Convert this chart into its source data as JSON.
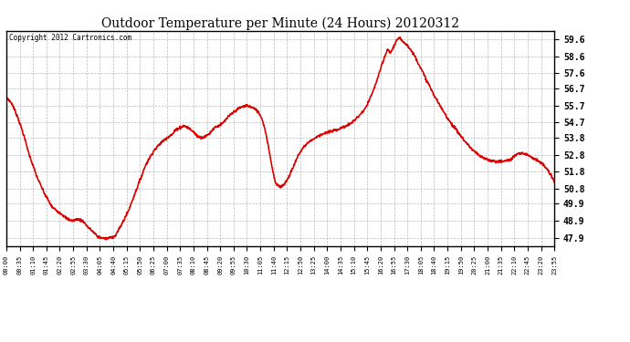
{
  "title": "Outdoor Temperature per Minute (24 Hours) 20120312",
  "copyright": "Copyright 2012 Cartronics.com",
  "line_color": "#dd0000",
  "background_color": "#ffffff",
  "grid_color": "#aaaaaa",
  "yticks": [
    47.9,
    48.9,
    49.9,
    50.8,
    51.8,
    52.8,
    53.8,
    54.7,
    55.7,
    56.7,
    57.6,
    58.6,
    59.6
  ],
  "ylim": [
    47.4,
    60.1
  ],
  "xtick_labels": [
    "00:00",
    "00:35",
    "01:10",
    "01:45",
    "02:20",
    "02:55",
    "03:30",
    "04:05",
    "04:40",
    "05:15",
    "05:50",
    "06:25",
    "07:00",
    "07:35",
    "08:10",
    "08:45",
    "09:20",
    "09:55",
    "10:30",
    "11:05",
    "11:40",
    "12:15",
    "12:50",
    "13:25",
    "14:00",
    "14:35",
    "15:10",
    "15:45",
    "16:20",
    "16:55",
    "17:30",
    "18:05",
    "18:40",
    "19:15",
    "19:50",
    "20:25",
    "21:00",
    "21:35",
    "22:10",
    "22:45",
    "23:20",
    "23:55"
  ],
  "control_points": [
    [
      0,
      56.2
    ],
    [
      15,
      55.8
    ],
    [
      30,
      55.0
    ],
    [
      45,
      54.0
    ],
    [
      60,
      52.8
    ],
    [
      80,
      51.5
    ],
    [
      100,
      50.5
    ],
    [
      120,
      49.7
    ],
    [
      145,
      49.3
    ],
    [
      160,
      49.0
    ],
    [
      175,
      48.9
    ],
    [
      185,
      49.0
    ],
    [
      200,
      48.9
    ],
    [
      215,
      48.5
    ],
    [
      225,
      48.3
    ],
    [
      240,
      47.95
    ],
    [
      255,
      47.87
    ],
    [
      265,
      47.85
    ],
    [
      270,
      47.9
    ],
    [
      285,
      48.0
    ],
    [
      300,
      48.6
    ],
    [
      320,
      49.5
    ],
    [
      345,
      51.0
    ],
    [
      365,
      52.2
    ],
    [
      385,
      53.0
    ],
    [
      405,
      53.5
    ],
    [
      420,
      53.8
    ],
    [
      435,
      54.0
    ],
    [
      445,
      54.3
    ],
    [
      455,
      54.4
    ],
    [
      465,
      54.5
    ],
    [
      475,
      54.4
    ],
    [
      490,
      54.15
    ],
    [
      500,
      53.9
    ],
    [
      510,
      53.8
    ],
    [
      520,
      53.85
    ],
    [
      530,
      54.0
    ],
    [
      545,
      54.4
    ],
    [
      555,
      54.5
    ],
    [
      565,
      54.6
    ],
    [
      580,
      55.0
    ],
    [
      595,
      55.3
    ],
    [
      610,
      55.55
    ],
    [
      622,
      55.65
    ],
    [
      630,
      55.7
    ],
    [
      642,
      55.6
    ],
    [
      650,
      55.5
    ],
    [
      660,
      55.3
    ],
    [
      668,
      55.0
    ],
    [
      675,
      54.5
    ],
    [
      682,
      53.8
    ],
    [
      690,
      52.8
    ],
    [
      698,
      51.8
    ],
    [
      705,
      51.1
    ],
    [
      712,
      50.95
    ],
    [
      718,
      50.92
    ],
    [
      725,
      51.0
    ],
    [
      735,
      51.3
    ],
    [
      750,
      52.0
    ],
    [
      765,
      52.8
    ],
    [
      780,
      53.3
    ],
    [
      795,
      53.6
    ],
    [
      810,
      53.8
    ],
    [
      825,
      54.0
    ],
    [
      840,
      54.1
    ],
    [
      855,
      54.2
    ],
    [
      870,
      54.3
    ],
    [
      885,
      54.45
    ],
    [
      900,
      54.6
    ],
    [
      920,
      55.0
    ],
    [
      940,
      55.5
    ],
    [
      960,
      56.5
    ],
    [
      975,
      57.5
    ],
    [
      985,
      58.2
    ],
    [
      993,
      58.7
    ],
    [
      998,
      59.0
    ],
    [
      1005,
      58.8
    ],
    [
      1013,
      59.1
    ],
    [
      1022,
      59.55
    ],
    [
      1030,
      59.65
    ],
    [
      1038,
      59.5
    ],
    [
      1048,
      59.3
    ],
    [
      1058,
      59.0
    ],
    [
      1070,
      58.6
    ],
    [
      1085,
      57.9
    ],
    [
      1100,
      57.2
    ],
    [
      1120,
      56.3
    ],
    [
      1140,
      55.5
    ],
    [
      1160,
      54.8
    ],
    [
      1180,
      54.2
    ],
    [
      1200,
      53.6
    ],
    [
      1220,
      53.1
    ],
    [
      1240,
      52.7
    ],
    [
      1260,
      52.5
    ],
    [
      1280,
      52.4
    ],
    [
      1300,
      52.4
    ],
    [
      1320,
      52.5
    ],
    [
      1335,
      52.8
    ],
    [
      1350,
      52.9
    ],
    [
      1365,
      52.8
    ],
    [
      1380,
      52.6
    ],
    [
      1395,
      52.4
    ],
    [
      1410,
      52.1
    ],
    [
      1420,
      51.8
    ],
    [
      1430,
      51.4
    ],
    [
      1435,
      51.2
    ]
  ]
}
